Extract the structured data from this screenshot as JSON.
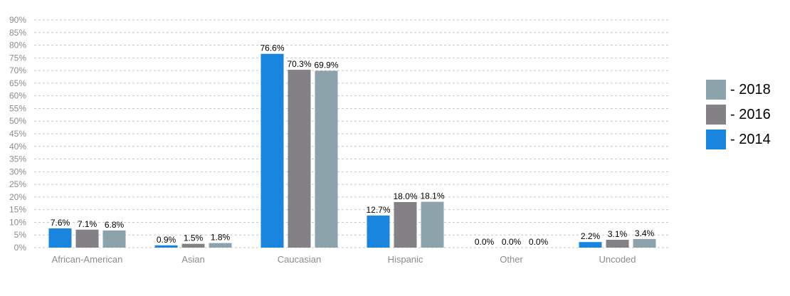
{
  "chart_data": {
    "type": "bar",
    "categories": [
      "African-American",
      "Asian",
      "Caucasian",
      "Hispanic",
      "Other",
      "Uncoded"
    ],
    "series": [
      {
        "name": "- 2014",
        "color": "#1a85df",
        "values": [
          7.6,
          0.9,
          76.6,
          12.7,
          0.0,
          2.2
        ],
        "labels": [
          "7.6%",
          "0.9%",
          "76.6%",
          "12.7%",
          "0.0%",
          "2.2%"
        ]
      },
      {
        "name": "- 2016",
        "color": "#838185",
        "values": [
          7.1,
          1.5,
          70.3,
          18.0,
          0.0,
          3.1
        ],
        "labels": [
          "7.1%",
          "1.5%",
          "70.3%",
          "18.0%",
          "0.0%",
          "3.1%"
        ]
      },
      {
        "name": "- 2018",
        "color": "#8ca3ab",
        "values": [
          6.8,
          1.8,
          69.9,
          18.1,
          0.0,
          3.4
        ],
        "labels": [
          "6.8%",
          "1.8%",
          "69.9%",
          "18.1%",
          "0.0%",
          "3.4%"
        ]
      }
    ],
    "yticks": [
      "0%",
      "5%",
      "10%",
      "15%",
      "20%",
      "25%",
      "30%",
      "35%",
      "40%",
      "45%",
      "50%",
      "55%",
      "60%",
      "65%",
      "70%",
      "75%",
      "80%",
      "85%",
      "90%"
    ],
    "ylim": [
      0,
      90
    ],
    "grid": true,
    "legend_position": "right",
    "legend_order": [
      "- 2018",
      "- 2016",
      "- 2014"
    ]
  }
}
